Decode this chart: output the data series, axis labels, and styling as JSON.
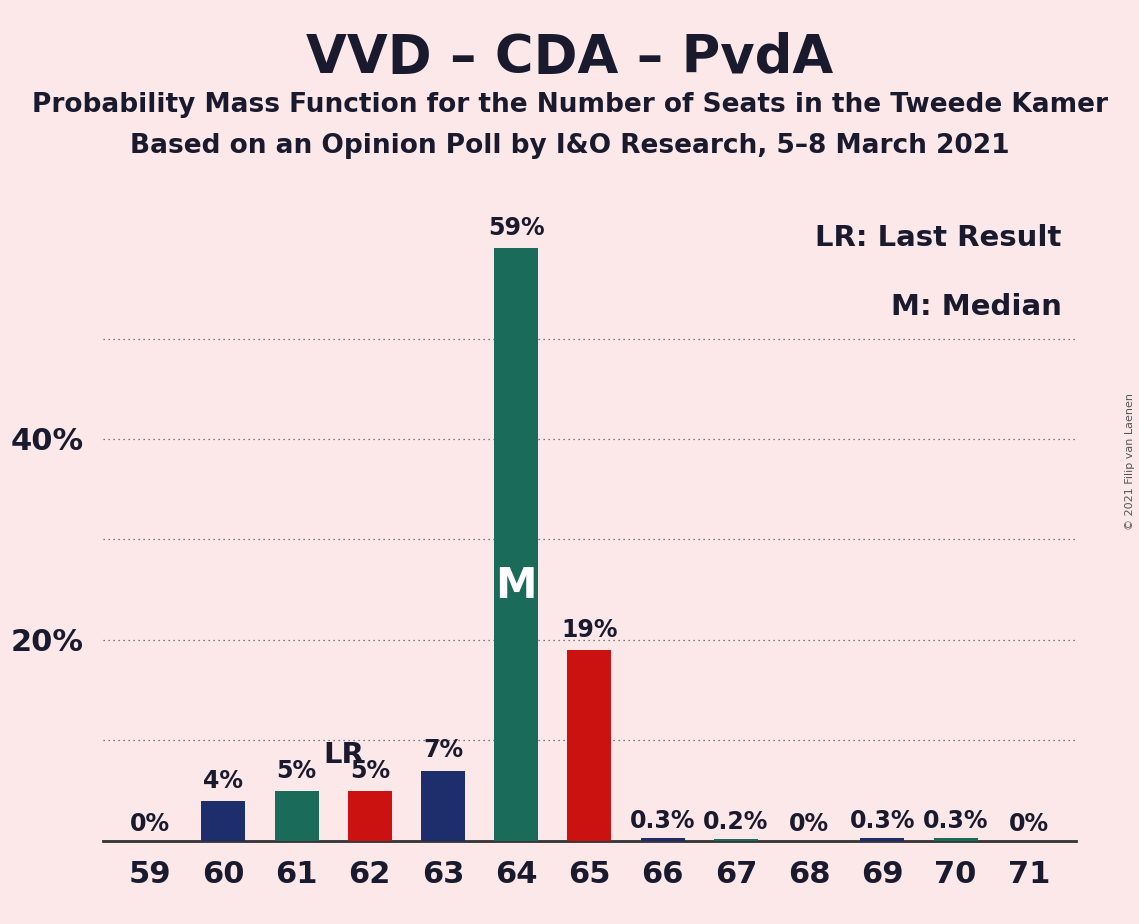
{
  "title": "VVD – CDA – PvdA",
  "subtitle1": "Probability Mass Function for the Number of Seats in the Tweede Kamer",
  "subtitle2": "Based on an Opinion Poll by I&O Research, 5–8 March 2021",
  "copyright": "© 2021 Filip van Laenen",
  "seats": [
    59,
    60,
    61,
    62,
    63,
    64,
    65,
    66,
    67,
    68,
    69,
    70,
    71
  ],
  "probabilities": [
    0.0,
    4.0,
    5.0,
    5.0,
    7.0,
    59.0,
    19.0,
    0.3,
    0.2,
    0.0,
    0.3,
    0.3,
    0.0
  ],
  "bar_colors": [
    "#1e2d6b",
    "#1e2d6b",
    "#1a6b5a",
    "#cc1111",
    "#1e2d6b",
    "#1a6b5a",
    "#cc1111",
    "#1e2d6b",
    "#1a6b5a",
    "#1e2d6b",
    "#1e2d6b",
    "#1a6b5a",
    "#1e2d6b"
  ],
  "labels": [
    "0%",
    "4%",
    "5%",
    "5%",
    "7%",
    "59%",
    "19%",
    "0.3%",
    "0.2%",
    "0%",
    "0.3%",
    "0.3%",
    "0%"
  ],
  "median_seat": 64,
  "lr_seat": 62,
  "background_color": "#fce8e8",
  "ylim": [
    0,
    63
  ],
  "grid_y": [
    10,
    20,
    30,
    40,
    50
  ],
  "ytick_positions": [
    20,
    40
  ],
  "ytick_labels": [
    "20%",
    "40%"
  ],
  "legend_text1": "LR: Last Result",
  "legend_text2": "M: Median",
  "title_fontsize": 38,
  "subtitle_fontsize": 19,
  "axis_fontsize": 22,
  "bar_label_fontsize": 17,
  "annotation_fontsize": 21,
  "m_fontsize": 30,
  "lr_fontsize": 21
}
